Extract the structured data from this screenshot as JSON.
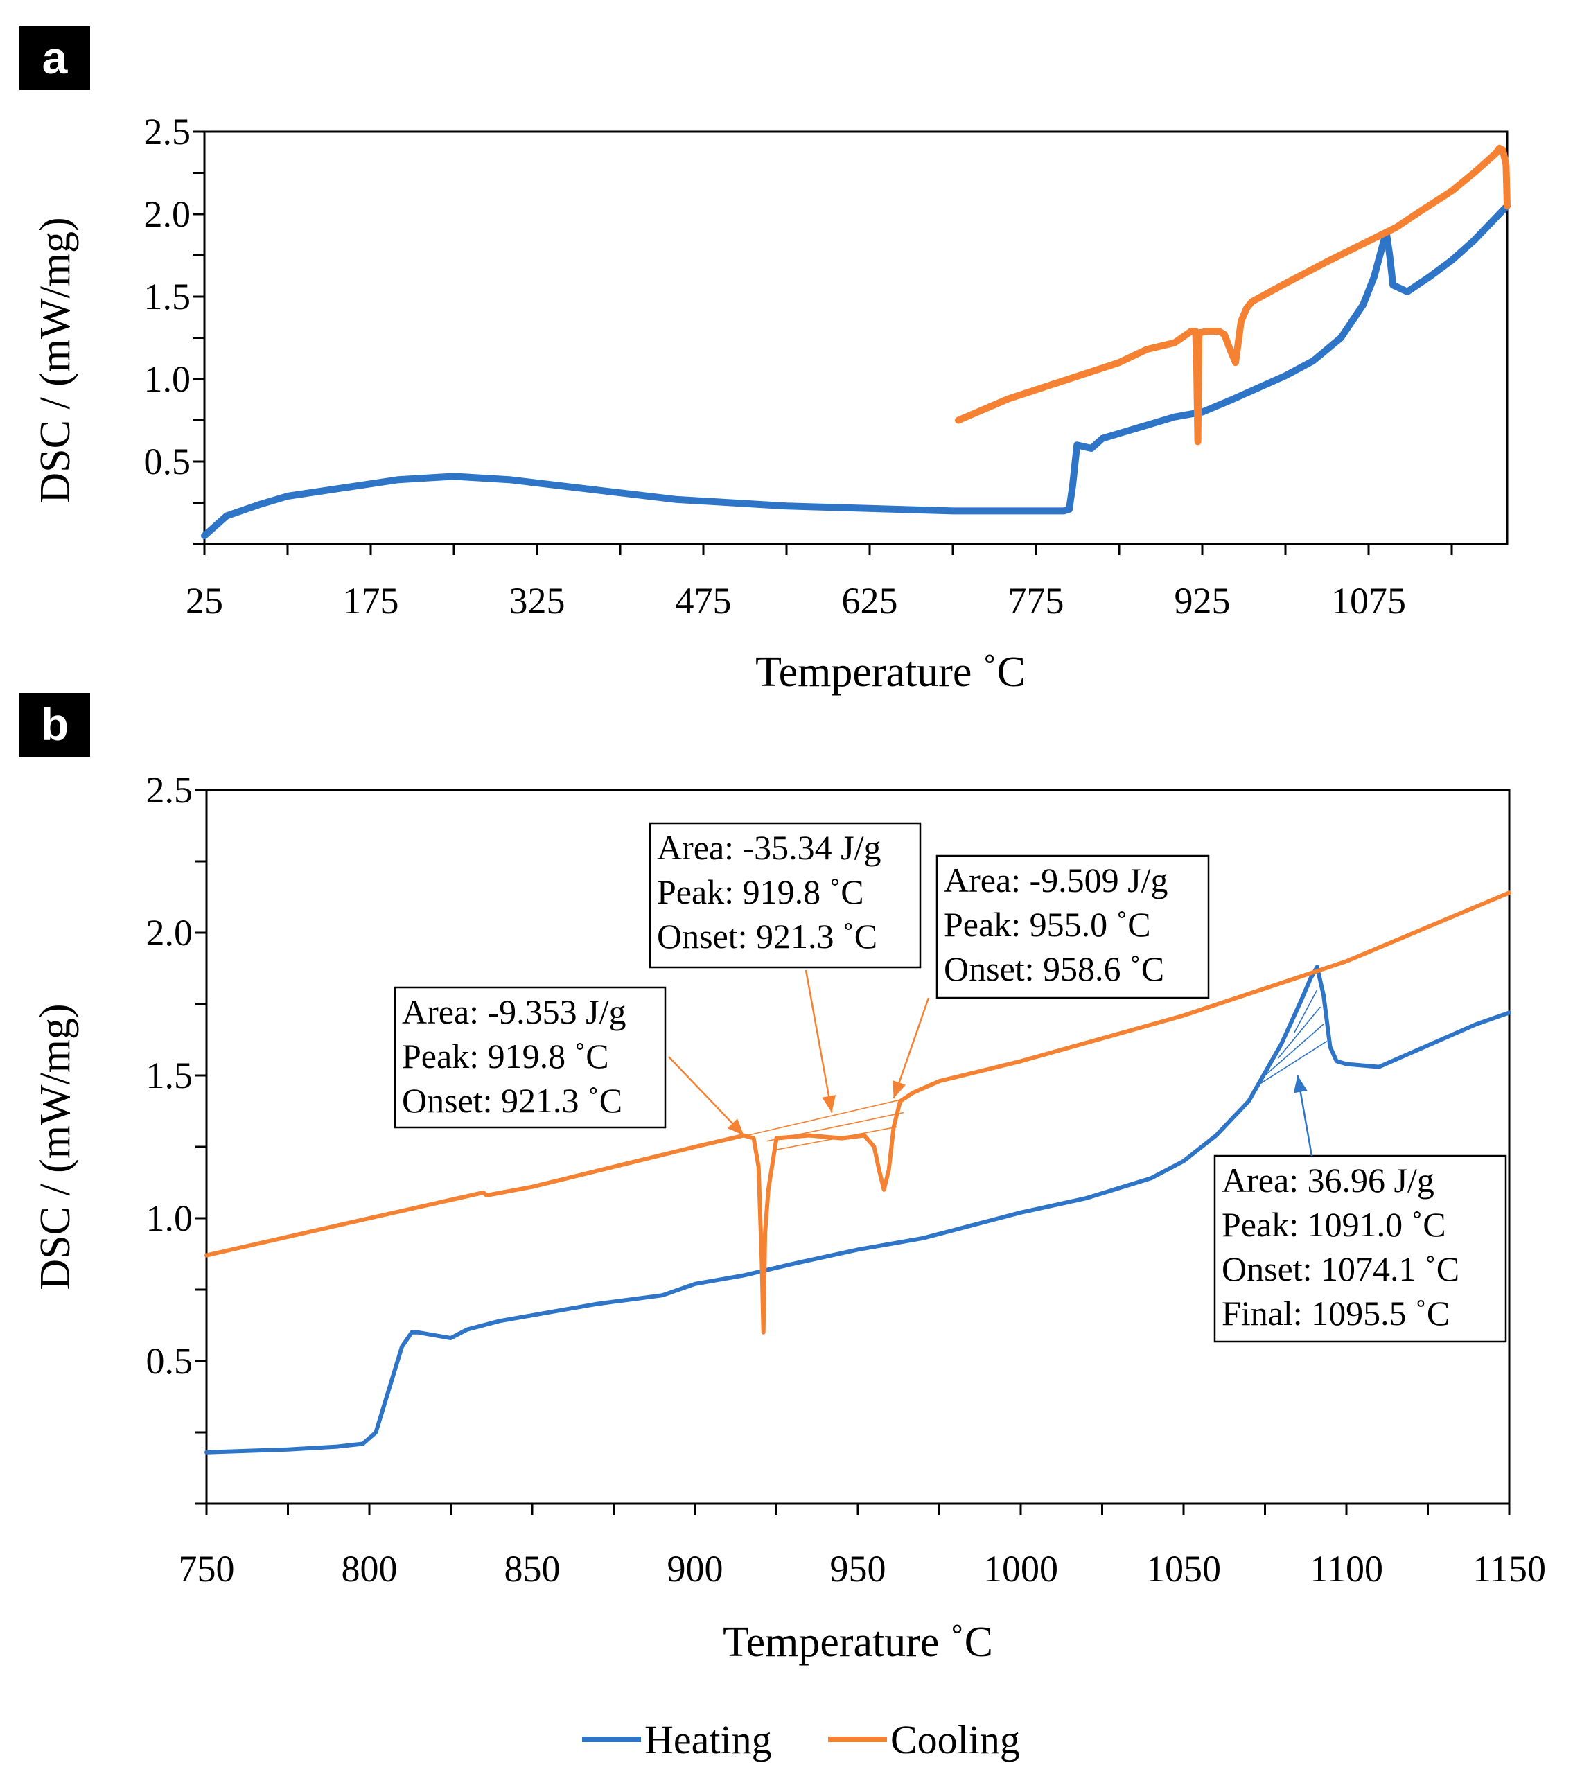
{
  "colors": {
    "heating": "#2e75c8",
    "cooling": "#f58232",
    "axis": "#000000"
  },
  "chart_data": [
    {
      "panel": "a",
      "type": "line",
      "xlabel": "Temperature ˚C",
      "ylabel": "DSC / (mW/mg)",
      "xlim": [
        25,
        1200
      ],
      "ylim": [
        0,
        2.5
      ],
      "xticks": [
        25,
        175,
        325,
        475,
        625,
        775,
        925,
        1075
      ],
      "xtick_labels": [
        "25",
        "175",
        "325",
        "475",
        "625",
        "775",
        "925",
        "1075"
      ],
      "yticks": [
        0.5,
        1.0,
        1.5,
        2.0,
        2.5
      ],
      "ytick_labels": [
        "0.5",
        "1.0",
        "1.5",
        "2.0",
        "2.5"
      ],
      "series": [
        {
          "name": "Heating",
          "color": "#2e75c8",
          "x": [
            25,
            45,
            75,
            100,
            150,
            200,
            250,
            300,
            350,
            400,
            450,
            500,
            550,
            600,
            650,
            700,
            750,
            790,
            800,
            805,
            808,
            812,
            825,
            835,
            850,
            900,
            925,
            950,
            1000,
            1025,
            1050,
            1070,
            1080,
            1088,
            1091,
            1094,
            1097,
            1110,
            1130,
            1150,
            1170,
            1200
          ],
          "y": [
            0.05,
            0.17,
            0.24,
            0.29,
            0.34,
            0.39,
            0.41,
            0.39,
            0.35,
            0.31,
            0.27,
            0.25,
            0.23,
            0.22,
            0.21,
            0.2,
            0.2,
            0.2,
            0.2,
            0.21,
            0.35,
            0.6,
            0.58,
            0.64,
            0.67,
            0.77,
            0.8,
            0.87,
            1.02,
            1.11,
            1.25,
            1.45,
            1.62,
            1.82,
            1.89,
            1.75,
            1.57,
            1.53,
            1.62,
            1.72,
            1.84,
            2.05
          ]
        },
        {
          "name": "Cooling",
          "color": "#f58232",
          "x": [
            1200,
            1199,
            1196,
            1193,
            1190,
            1170,
            1150,
            1120,
            1100,
            1070,
            1040,
            1000,
            970,
            965,
            960,
            955,
            950,
            945,
            940,
            930,
            922,
            921,
            920,
            919,
            917,
            915,
            900,
            875,
            850,
            800,
            750,
            705
          ],
          "y": [
            2.05,
            2.3,
            2.39,
            2.4,
            2.37,
            2.25,
            2.14,
            2.01,
            1.92,
            1.82,
            1.72,
            1.58,
            1.47,
            1.43,
            1.35,
            1.1,
            1.18,
            1.27,
            1.29,
            1.29,
            1.28,
            0.62,
            1.07,
            1.29,
            1.29,
            1.29,
            1.22,
            1.18,
            1.1,
            0.99,
            0.88,
            0.75
          ]
        }
      ]
    },
    {
      "panel": "b",
      "type": "line",
      "xlabel": "Temperature ˚C",
      "ylabel": "DSC / (mW/mg)",
      "xlim": [
        750,
        1150
      ],
      "ylim": [
        0,
        2.5
      ],
      "xticks": [
        750,
        800,
        850,
        900,
        950,
        1000,
        1050,
        1100,
        1150
      ],
      "xtick_labels": [
        "750",
        "800",
        "850",
        "900",
        "950",
        "1000",
        "1050",
        "1100",
        "1150"
      ],
      "yticks": [
        0.5,
        1.0,
        1.5,
        2.0,
        2.5
      ],
      "ytick_labels": [
        "0.5",
        "1.0",
        "1.5",
        "2.0",
        "2.5"
      ],
      "series": [
        {
          "name": "Heating",
          "color": "#2e75c8",
          "x": [
            750,
            775,
            790,
            798,
            802,
            806,
            810,
            813,
            815,
            820,
            825,
            830,
            840,
            850,
            870,
            890,
            900,
            915,
            930,
            950,
            970,
            980,
            990,
            1000,
            1020,
            1040,
            1050,
            1060,
            1070,
            1080,
            1086,
            1089,
            1091,
            1093,
            1095,
            1097,
            1100,
            1110,
            1120,
            1130,
            1140,
            1150
          ],
          "y": [
            0.18,
            0.19,
            0.2,
            0.21,
            0.25,
            0.4,
            0.55,
            0.6,
            0.6,
            0.59,
            0.58,
            0.61,
            0.64,
            0.66,
            0.7,
            0.73,
            0.77,
            0.8,
            0.84,
            0.89,
            0.93,
            0.96,
            0.99,
            1.02,
            1.07,
            1.14,
            1.2,
            1.29,
            1.41,
            1.61,
            1.76,
            1.84,
            1.88,
            1.78,
            1.6,
            1.55,
            1.54,
            1.53,
            1.58,
            1.63,
            1.68,
            1.72
          ]
        },
        {
          "name": "Cooling",
          "color": "#f58232",
          "x": [
            750,
            800,
            835,
            836,
            850,
            900,
            915,
            918,
            919.5,
            920.5,
            921,
            921.5,
            922.5,
            925,
            935,
            945,
            952,
            955,
            956.5,
            958,
            959.5,
            961,
            963,
            967,
            975,
            1000,
            1050,
            1100,
            1150
          ],
          "y": [
            0.87,
            1.0,
            1.09,
            1.08,
            1.11,
            1.25,
            1.29,
            1.28,
            1.18,
            0.85,
            0.6,
            0.95,
            1.1,
            1.28,
            1.29,
            1.28,
            1.29,
            1.25,
            1.17,
            1.1,
            1.17,
            1.32,
            1.41,
            1.44,
            1.48,
            1.55,
            1.71,
            1.9,
            2.14
          ]
        }
      ],
      "annotations": [
        {
          "lines": [
            "Area: -9.353 J/g",
            "Peak: 919.8 ˚C",
            "Onset: 921.3 ˚C"
          ],
          "color": "#f58232",
          "target": [
            915,
            1.29
          ]
        },
        {
          "lines": [
            "Area: -35.34 J/g",
            "Peak: 919.8 ˚C",
            "Onset: 921.3 ˚C"
          ],
          "color": "#f58232",
          "target": [
            942,
            1.37
          ]
        },
        {
          "lines": [
            "Area: -9.509 J/g",
            "Peak: 955.0 ˚C",
            "Onset: 958.6 ˚C"
          ],
          "color": "#f58232",
          "target": [
            961,
            1.42
          ]
        },
        {
          "lines": [
            "Area: 36.96 J/g",
            "Peak: 1091.0 ˚C",
            "Onset: 1074.1 ˚C",
            "Final: 1095.5 ˚C"
          ],
          "color": "#2e75c8",
          "target": [
            1085,
            1.5
          ]
        }
      ]
    }
  ],
  "panel_labels": {
    "a": "a",
    "b": "b"
  },
  "legend": [
    {
      "name": "Heating",
      "color": "#2e75c8"
    },
    {
      "name": "Cooling",
      "color": "#f58232"
    }
  ]
}
